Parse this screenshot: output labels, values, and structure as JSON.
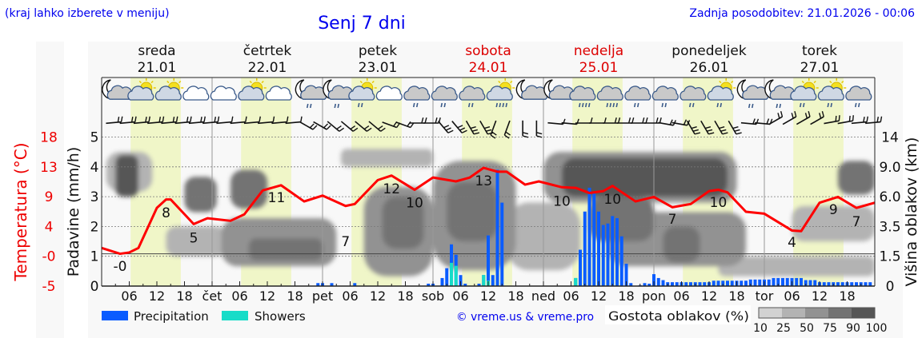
{
  "header": {
    "hint": "(kraj lahko izberete v meniju)",
    "title": "Senj 7 dni",
    "updated": "Zadnja posodobitev: 21.01.2026 - 00:06"
  },
  "legend": {
    "precip_label": "Precipitation",
    "showers_label": "Showers",
    "credit": "© vreme.us & vreme.pro",
    "cloud_title": "Gostota oblakov (%)",
    "cloud_levels": [
      "10",
      "25",
      "50",
      "75",
      "90",
      "100"
    ]
  },
  "colors": {
    "precip": "#0a5cff",
    "showers": "#17dcc8",
    "temperature": "#ff0000",
    "daylight": "#f0f6c8",
    "weekend": "#dd0000",
    "cloud_10": "#d2d2d2",
    "cloud_25": "#b3b3b3",
    "cloud_50": "#929292",
    "cloud_75": "#737373",
    "cloud_90": "#565656"
  },
  "chart_data": {
    "type": "meteogram",
    "title": "Senj 7 dni",
    "hours_range": [
      0,
      168
    ],
    "days": [
      {
        "name": "sreda",
        "date": "21.01",
        "short": "",
        "weekend": false
      },
      {
        "name": "četrtek",
        "date": "22.01",
        "short": "čet",
        "weekend": false
      },
      {
        "name": "petek",
        "date": "23.01",
        "short": "pet",
        "weekend": false
      },
      {
        "name": "sobota",
        "date": "24.01",
        "short": "sob",
        "weekend": true
      },
      {
        "name": "nedelja",
        "date": "25.01",
        "short": "ned",
        "weekend": true
      },
      {
        "name": "ponedeljek",
        "date": "26.01",
        "short": "pon",
        "weekend": false
      },
      {
        "name": "torek",
        "date": "27.01",
        "short": "tor",
        "weekend": false
      }
    ],
    "hour_ticks": [
      "06",
      "12",
      "18"
    ],
    "daylight_hours": [
      6.3,
      17.2
    ],
    "left_axis": {
      "label": "Padavine (mm/h)",
      "ticks": [
        "0",
        "1",
        "2",
        "3",
        "4",
        "5"
      ],
      "ylim": [
        0,
        5
      ]
    },
    "temp_axis": {
      "label": "Temperatura (°C)",
      "ticks": [
        "-5",
        "-0",
        "4",
        "9",
        "13",
        "18"
      ],
      "ylim": [
        -5,
        18
      ]
    },
    "right_axis": {
      "label": "Višina oblakov (km)",
      "ticks": [
        "0",
        "1.5",
        "3.5",
        "6.0",
        "9.0",
        "14"
      ],
      "values": [
        0,
        1.5,
        3.5,
        6,
        9,
        14
      ]
    },
    "temperature": [
      [
        0,
        0.9
      ],
      [
        4,
        0.0
      ],
      [
        6,
        0.2
      ],
      [
        8,
        0.9
      ],
      [
        12,
        7.1
      ],
      [
        14,
        8.4
      ],
      [
        15,
        8.4
      ],
      [
        20,
        4.6
      ],
      [
        23,
        5.5
      ],
      [
        28,
        5.1
      ],
      [
        31,
        6.1
      ],
      [
        35,
        9.8
      ],
      [
        39,
        10.6
      ],
      [
        44,
        8.1
      ],
      [
        48,
        9.0
      ],
      [
        53,
        7.4
      ],
      [
        55,
        7.7
      ],
      [
        60,
        11.4
      ],
      [
        63,
        12.1
      ],
      [
        68,
        9.9
      ],
      [
        72,
        11.8
      ],
      [
        77,
        11.2
      ],
      [
        80,
        11.8
      ],
      [
        83,
        13.3
      ],
      [
        86,
        12.7
      ],
      [
        88,
        12.7
      ],
      [
        92,
        10.7
      ],
      [
        95,
        11.2
      ],
      [
        100,
        10.3
      ],
      [
        103,
        10.2
      ],
      [
        106,
        9.4
      ],
      [
        109,
        9.7
      ],
      [
        111,
        10.5
      ],
      [
        116,
        8.1
      ],
      [
        120,
        8.8
      ],
      [
        124,
        7.2
      ],
      [
        128,
        7.7
      ],
      [
        132,
        9.7
      ],
      [
        134,
        9.9
      ],
      [
        136,
        9.5
      ],
      [
        140,
        6.5
      ],
      [
        144,
        6.2
      ],
      [
        150,
        3.6
      ],
      [
        152,
        3.5
      ],
      [
        156,
        7.9
      ],
      [
        160,
        8.8
      ],
      [
        164,
        7.1
      ],
      [
        168,
        7.9
      ]
    ],
    "temperature_labels": [
      {
        "h": 4,
        "t": -1.9,
        "label": "-0"
      },
      {
        "h": 14,
        "t": 6.4,
        "label": "8"
      },
      {
        "h": 20,
        "t": 2.5,
        "label": "5"
      },
      {
        "h": 38,
        "t": 8.7,
        "label": "11"
      },
      {
        "h": 53,
        "t": 1.9,
        "label": "7"
      },
      {
        "h": 63,
        "t": 10.1,
        "label": "12"
      },
      {
        "h": 68,
        "t": 7.9,
        "label": "10"
      },
      {
        "h": 83,
        "t": 11.3,
        "label": "13"
      },
      {
        "h": 100,
        "t": 8.2,
        "label": "10"
      },
      {
        "h": 111,
        "t": 8.5,
        "label": "10"
      },
      {
        "h": 124,
        "t": 5.4,
        "label": "7"
      },
      {
        "h": 134,
        "t": 8.0,
        "label": "10"
      },
      {
        "h": 150,
        "t": 1.8,
        "label": "4"
      },
      {
        "h": 159,
        "t": 6.9,
        "label": "9"
      },
      {
        "h": 164,
        "t": 5.0,
        "label": "7"
      }
    ],
    "precipitation": [
      [
        47,
        0.1,
        0
      ],
      [
        48,
        0.1,
        0
      ],
      [
        50,
        0.1,
        0
      ],
      [
        55,
        0.1,
        0
      ],
      [
        71,
        0.08,
        0
      ],
      [
        72,
        0.08,
        0
      ],
      [
        74,
        0.27,
        0
      ],
      [
        75,
        0.6,
        0
      ],
      [
        76,
        1.4,
        0.78
      ],
      [
        77,
        1.05,
        0.68
      ],
      [
        78,
        0.37,
        0
      ],
      [
        79,
        0.08,
        0
      ],
      [
        82,
        0.08,
        0
      ],
      [
        83,
        0.37,
        0.37
      ],
      [
        84,
        1.7,
        0.18
      ],
      [
        85,
        0.37,
        0
      ],
      [
        86,
        3.9,
        0
      ],
      [
        87,
        2.8,
        0
      ],
      [
        103,
        0.27,
        0.27
      ],
      [
        104,
        1.22,
        0
      ],
      [
        105,
        2.5,
        0
      ],
      [
        106,
        3.3,
        0
      ],
      [
        107,
        3.1,
        0
      ],
      [
        108,
        2.5,
        0
      ],
      [
        109,
        2.05,
        0
      ],
      [
        110,
        2.1,
        0
      ],
      [
        111,
        2.35,
        0
      ],
      [
        112,
        2.28,
        0
      ],
      [
        113,
        1.67,
        0
      ],
      [
        114,
        0.75,
        0
      ],
      [
        115,
        0.1,
        0
      ],
      [
        117,
        0.03,
        0
      ],
      [
        118,
        0.1,
        0
      ],
      [
        119,
        0.08,
        0
      ],
      [
        120,
        0.4,
        0
      ],
      [
        121,
        0.27,
        0
      ],
      [
        122,
        0.2,
        0
      ],
      [
        123,
        0.13,
        0
      ],
      [
        124,
        0.13,
        0
      ],
      [
        125,
        0.13,
        0
      ],
      [
        126,
        0.13,
        0
      ],
      [
        127,
        0.13,
        0
      ],
      [
        128,
        0.13,
        0
      ],
      [
        129,
        0.13,
        0
      ],
      [
        130,
        0.13,
        0
      ],
      [
        131,
        0.13,
        0
      ],
      [
        132,
        0.13,
        0
      ],
      [
        133,
        0.18,
        0
      ],
      [
        134,
        0.18,
        0
      ],
      [
        135,
        0.18,
        0
      ],
      [
        136,
        0.18,
        0
      ],
      [
        137,
        0.18,
        0
      ],
      [
        138,
        0.18,
        0
      ],
      [
        139,
        0.18,
        0
      ],
      [
        140,
        0.18,
        0
      ],
      [
        141,
        0.22,
        0
      ],
      [
        142,
        0.22,
        0
      ],
      [
        143,
        0.22,
        0
      ],
      [
        144,
        0.22,
        0
      ],
      [
        145,
        0.22,
        0
      ],
      [
        146,
        0.27,
        0
      ],
      [
        147,
        0.27,
        0
      ],
      [
        148,
        0.27,
        0
      ],
      [
        149,
        0.27,
        0
      ],
      [
        150,
        0.27,
        0
      ],
      [
        151,
        0.27,
        0
      ],
      [
        152,
        0.27,
        0
      ],
      [
        153,
        0.2,
        0
      ],
      [
        154,
        0.2,
        0
      ],
      [
        155,
        0.2,
        0
      ],
      [
        156,
        0.13,
        0
      ],
      [
        157,
        0.13,
        0
      ],
      [
        158,
        0.13,
        0
      ],
      [
        159,
        0.13,
        0
      ],
      [
        160,
        0.13,
        0
      ],
      [
        161,
        0.13,
        0
      ],
      [
        162,
        0.13,
        0
      ],
      [
        163,
        0.13,
        0
      ],
      [
        164,
        0.13,
        0
      ],
      [
        165,
        0.13,
        0
      ],
      [
        166,
        0.13,
        0
      ],
      [
        167,
        0.13,
        0
      ]
    ],
    "cloud_density": [
      {
        "h": [
          1,
          11
        ],
        "km": [
          6.5,
          11.5
        ],
        "d": 25
      },
      {
        "h": [
          14,
          27
        ],
        "km": [
          1.5,
          3.5
        ],
        "d": 25
      },
      {
        "h": [
          88,
          104
        ],
        "km": [
          0.8,
          5.5
        ],
        "d": 25
      },
      {
        "h": [
          134,
          168
        ],
        "km": [
          0.5,
          1.5
        ],
        "d": 25
      },
      {
        "h": [
          150,
          168
        ],
        "km": [
          2.5,
          5.2
        ],
        "d": 25
      },
      {
        "h": [
          52,
          72
        ],
        "km": [
          9,
          12
        ],
        "d": 25
      },
      {
        "h": [
          26,
          51
        ],
        "km": [
          1,
          4.2
        ],
        "d": 50
      },
      {
        "h": [
          57,
          72
        ],
        "km": [
          0.5,
          7
        ],
        "d": 50
      },
      {
        "h": [
          72,
          90
        ],
        "km": [
          0.8,
          10
        ],
        "d": 50
      },
      {
        "h": [
          96,
          138
        ],
        "km": [
          5.5,
          11.5
        ],
        "d": 50
      },
      {
        "h": [
          110,
          140
        ],
        "km": [
          1,
          4.7
        ],
        "d": 50
      },
      {
        "h": [
          18,
          25
        ],
        "km": [
          4.7,
          8
        ],
        "d": 75
      },
      {
        "h": [
          32,
          48
        ],
        "km": [
          1.3,
          2.7
        ],
        "d": 75
      },
      {
        "h": [
          28,
          36
        ],
        "km": [
          5,
          8.7
        ],
        "d": 75
      },
      {
        "h": [
          61,
          70
        ],
        "km": [
          2,
          6
        ],
        "d": 75
      },
      {
        "h": [
          75,
          86
        ],
        "km": [
          2.5,
          7.5
        ],
        "d": 75
      },
      {
        "h": [
          106,
          120
        ],
        "km": [
          2.5,
          6
        ],
        "d": 75
      },
      {
        "h": [
          122,
          130
        ],
        "km": [
          1.2,
          3.5
        ],
        "d": 75
      },
      {
        "h": [
          160,
          168
        ],
        "km": [
          6.2,
          10
        ],
        "d": 75
      },
      {
        "h": [
          3,
          8
        ],
        "km": [
          6,
          11
        ],
        "d": 90
      },
      {
        "h": [
          100,
          136
        ],
        "km": [
          6,
          10.5
        ],
        "d": 90
      }
    ],
    "weather_icons": [
      "moon-cloud",
      "sun-cloud",
      "sun-cloud",
      "cloud",
      "cloud",
      "sun-cloud",
      "cloud",
      "moon-cloud-rain",
      "moon-cloud-rain",
      "sun-cloud-rain",
      "cloud",
      "cloud-rain",
      "cloud-rain",
      "cloud-rain",
      "sun-cloud-heavy-rain",
      "moon-cloud",
      "moon-cloud",
      "cloud-heavy-rain",
      "cloud-heavy-rain",
      "cloud-rain",
      "cloud-rain",
      "cloud-rain",
      "sun-cloud-rain",
      "moon-cloud-rain",
      "moon-cloud-rain",
      "sun-cloud-rain",
      "sun-cloud-rain",
      "cloud-rain"
    ],
    "wind": [
      [
        85,
        15
      ],
      [
        85,
        15
      ],
      [
        85,
        15
      ],
      [
        85,
        15
      ],
      [
        85,
        10
      ],
      [
        85,
        10
      ],
      [
        85,
        10
      ],
      [
        120,
        15
      ],
      [
        130,
        20
      ],
      [
        130,
        20
      ],
      [
        110,
        20
      ],
      [
        90,
        15
      ],
      [
        140,
        25
      ],
      [
        150,
        30
      ],
      [
        200,
        20
      ],
      [
        180,
        15
      ],
      [
        95,
        10
      ],
      [
        90,
        10
      ],
      [
        90,
        15
      ],
      [
        90,
        15
      ],
      [
        100,
        15
      ],
      [
        150,
        25
      ],
      [
        150,
        25
      ],
      [
        95,
        15
      ],
      [
        60,
        20
      ],
      [
        60,
        20
      ],
      [
        80,
        15
      ],
      [
        85,
        15
      ]
    ]
  }
}
